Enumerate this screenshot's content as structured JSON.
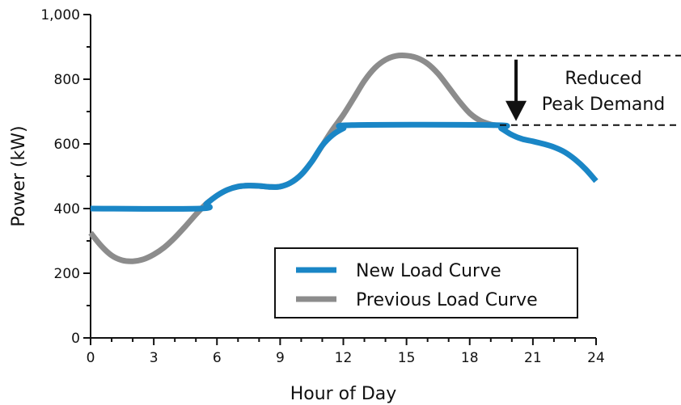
{
  "chart_data": {
    "type": "line",
    "title": "",
    "xlabel": "Hour of Day",
    "ylabel": "Power (kW)",
    "xlim": [
      0,
      24
    ],
    "ylim": [
      0,
      1000
    ],
    "x_ticks": [
      0,
      3,
      6,
      9,
      12,
      15,
      18,
      21,
      24
    ],
    "x_tick_labels": [
      "0",
      "3",
      "6",
      "9",
      "12",
      "15",
      "18",
      "21",
      "24"
    ],
    "y_ticks": [
      0,
      200,
      400,
      600,
      800,
      1000
    ],
    "y_tick_labels": [
      "0",
      "200",
      "400",
      "600",
      "800",
      "1,000"
    ],
    "grid": false,
    "legend_position": "lower-right",
    "series": [
      {
        "name": "Previous Load Curve",
        "color": "#8c8c8c",
        "x": [
          0,
          0.5,
          1,
          1.5,
          2,
          2.5,
          3,
          3.5,
          4,
          4.5,
          5,
          5.5,
          6,
          6.5,
          7,
          7.5,
          8,
          8.5,
          9,
          9.5,
          10,
          10.5,
          11,
          11.5,
          12,
          12.5,
          13,
          13.5,
          14,
          14.5,
          15,
          15.5,
          16,
          16.5,
          17,
          17.5,
          18,
          18.5,
          19,
          19.2
        ],
        "y": [
          325,
          285,
          255,
          240,
          237,
          243,
          258,
          280,
          310,
          345,
          382,
          415,
          440,
          458,
          468,
          471,
          470,
          467,
          468,
          480,
          505,
          545,
          595,
          645,
          690,
          742,
          795,
          835,
          860,
          872,
          873,
          866,
          848,
          817,
          775,
          732,
          695,
          672,
          660,
          658
        ]
      },
      {
        "name": "New Load Curve",
        "color": "#1a86c6",
        "x": [
          0,
          5.2,
          5.5,
          6,
          6.5,
          7,
          7.5,
          8,
          8.5,
          9,
          9.5,
          10,
          10.5,
          11,
          11.5,
          12,
          12.4,
          19.2,
          19.5,
          20,
          20.5,
          21,
          21.5,
          22,
          22.5,
          23,
          23.5,
          24
        ],
        "y": [
          400,
          400,
          415,
          440,
          458,
          468,
          471,
          470,
          467,
          468,
          480,
          505,
          545,
          595,
          628,
          648,
          658,
          658,
          648,
          628,
          615,
          608,
          600,
          590,
          575,
          552,
          522,
          485
        ]
      }
    ],
    "annotations": [
      {
        "text_lines": [
          "Reduced",
          "Peak Demand"
        ],
        "arrow_from_y": 873,
        "arrow_to_y": 658,
        "arrow_x": 20.2
      }
    ]
  }
}
